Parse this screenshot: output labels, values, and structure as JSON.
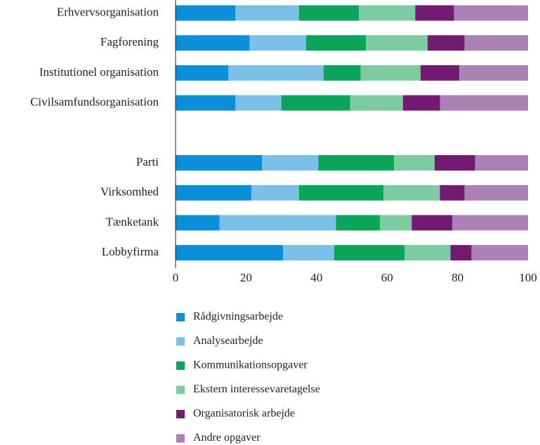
{
  "chart_data": {
    "type": "stacked-bar-horizontal",
    "categories": [
      "Erhvervsorganisation",
      "Fagforening",
      "Institutionel organisation",
      "Civilsamfundsorganisation",
      null,
      "Parti",
      "Virksomhed",
      "Tænketank",
      "Lobbyfirma"
    ],
    "series": [
      {
        "name": "Rådgivningsarbejde",
        "color": "#0a8fd8",
        "values": [
          17,
          21,
          15,
          17,
          null,
          24.5,
          21.5,
          12.5,
          30.5
        ]
      },
      {
        "name": "Analysearbejde",
        "color": "#7cbfe9",
        "values": [
          18,
          16,
          27,
          13,
          null,
          16,
          13.5,
          33,
          14.5
        ]
      },
      {
        "name": "Kommunikationsopgaver",
        "color": "#0aa55a",
        "values": [
          17,
          17,
          10.5,
          19.5,
          null,
          21.5,
          24,
          12.5,
          20
        ]
      },
      {
        "name": "Ekstern interessevaretagelse",
        "color": "#7dcba0",
        "values": [
          16,
          17.5,
          17,
          15,
          null,
          11.5,
          16,
          9,
          13
        ]
      },
      {
        "name": "Organisatorisk arbejde",
        "color": "#731a73",
        "values": [
          11,
          10.5,
          11,
          10.5,
          null,
          11.5,
          7,
          11.5,
          6
        ]
      },
      {
        "name": "Andre opgaver",
        "color": "#ab82b5",
        "values": [
          21,
          18,
          19.5,
          25,
          null,
          15,
          18,
          21.5,
          16
        ]
      }
    ],
    "xlim": [
      0,
      100
    ],
    "xticks": [
      0,
      20,
      40,
      60,
      80,
      100
    ]
  }
}
